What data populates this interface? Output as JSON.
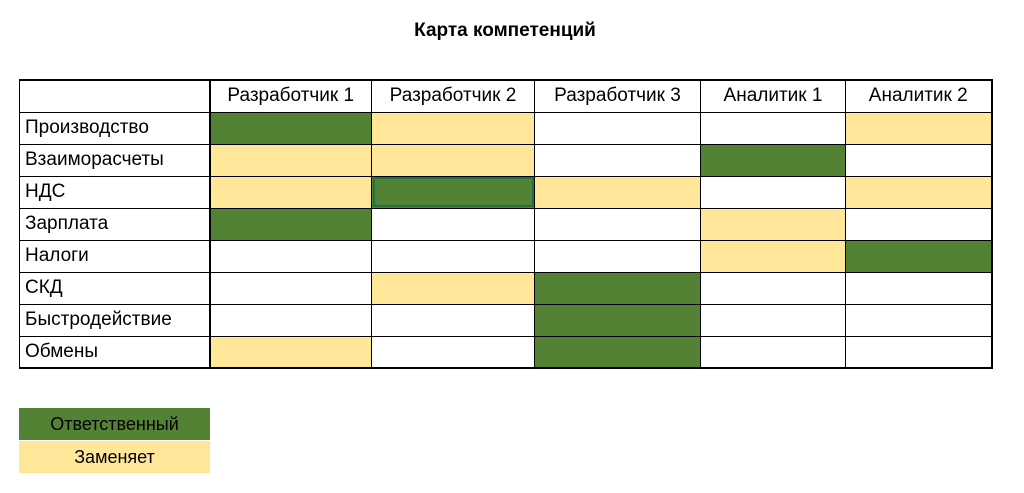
{
  "title": "Карта компетенций",
  "columns": [
    "Разработчик 1",
    "Разработчик 2",
    "Разработчик 3",
    "Аналитик 1",
    "Аналитик 2"
  ],
  "rows": [
    {
      "label": "Производство",
      "cells": [
        "responsible",
        "substitute",
        "none",
        "none",
        "substitute"
      ]
    },
    {
      "label": "Взаиморасчеты",
      "cells": [
        "substitute",
        "substitute",
        "none",
        "responsible",
        "none"
      ]
    },
    {
      "label": "НДС",
      "cells": [
        "substitute",
        "responsible",
        "substitute",
        "none",
        "substitute"
      ]
    },
    {
      "label": "Зарплата",
      "cells": [
        "responsible",
        "none",
        "none",
        "substitute",
        "none"
      ]
    },
    {
      "label": "Налоги",
      "cells": [
        "none",
        "none",
        "none",
        "substitute",
        "responsible"
      ]
    },
    {
      "label": "СКД",
      "cells": [
        "none",
        "substitute",
        "responsible",
        "none",
        "none"
      ]
    },
    {
      "label": "Быстродействие",
      "cells": [
        "none",
        "none",
        "responsible",
        "none",
        "none"
      ]
    },
    {
      "label": "Обмены",
      "cells": [
        "substitute",
        "none",
        "responsible",
        "none",
        "none"
      ]
    }
  ],
  "selected_cell": {
    "row": 2,
    "col": 1
  },
  "legend": {
    "responsible": "Ответственный",
    "substitute": "Заменяет"
  },
  "colors": {
    "responsible": "#548235",
    "substitute": "#ffe699",
    "selection": "#217346"
  }
}
